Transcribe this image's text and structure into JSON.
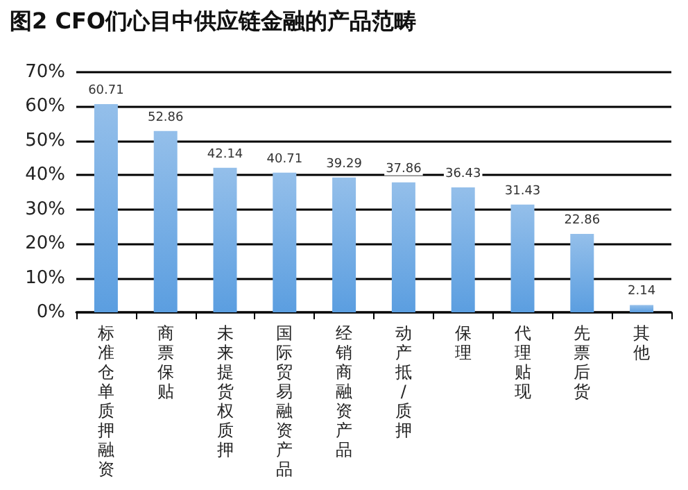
{
  "chart_data": {
    "type": "bar",
    "title": "图2 CFO们心目中供应链金融的产品范畴",
    "categories": [
      "标准仓单质押融资",
      "商票保贴",
      "未来提货权质押",
      "国际贸易融资产品",
      "经销商融资产品",
      "动产抵/质押",
      "保理",
      "代理贴现",
      "先票后货",
      "其他"
    ],
    "values": [
      60.71,
      52.86,
      42.14,
      40.71,
      39.29,
      37.86,
      36.43,
      31.43,
      22.86,
      2.14
    ],
    "color": "#5b9ee0",
    "data_labels": true,
    "grid": "y",
    "ylim": [
      0,
      70
    ],
    "yticks": [
      {
        "value": 0,
        "label": "0%"
      },
      {
        "value": 10,
        "label": "10%"
      },
      {
        "value": 20,
        "label": "20%"
      },
      {
        "value": 30,
        "label": "30%"
      },
      {
        "value": 40,
        "label": "40%"
      },
      {
        "value": 50,
        "label": "50%"
      },
      {
        "value": 60,
        "label": "60%"
      },
      {
        "value": 70,
        "label": "70%"
      }
    ]
  }
}
